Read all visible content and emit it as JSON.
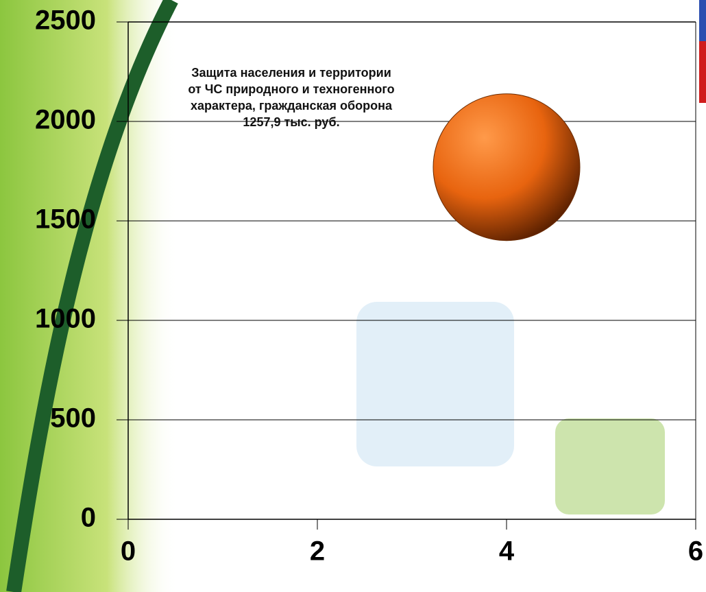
{
  "chart_data": {
    "type": "bubble",
    "annotation": "Защита населения и территории от ЧС природного и техногенного характера, гражданская оборона  1257,9 тыс. руб.",
    "x": [
      4
    ],
    "values": [
      1770
    ],
    "sizes": [
      1257.9
    ],
    "color": "#e8640f",
    "xlim": [
      0,
      6
    ],
    "xticks": [
      0,
      2,
      4,
      6
    ],
    "ylim": [
      0,
      2500
    ],
    "yticks": [
      0,
      500,
      1000,
      1500,
      2000,
      2500
    ],
    "grid": true
  }
}
